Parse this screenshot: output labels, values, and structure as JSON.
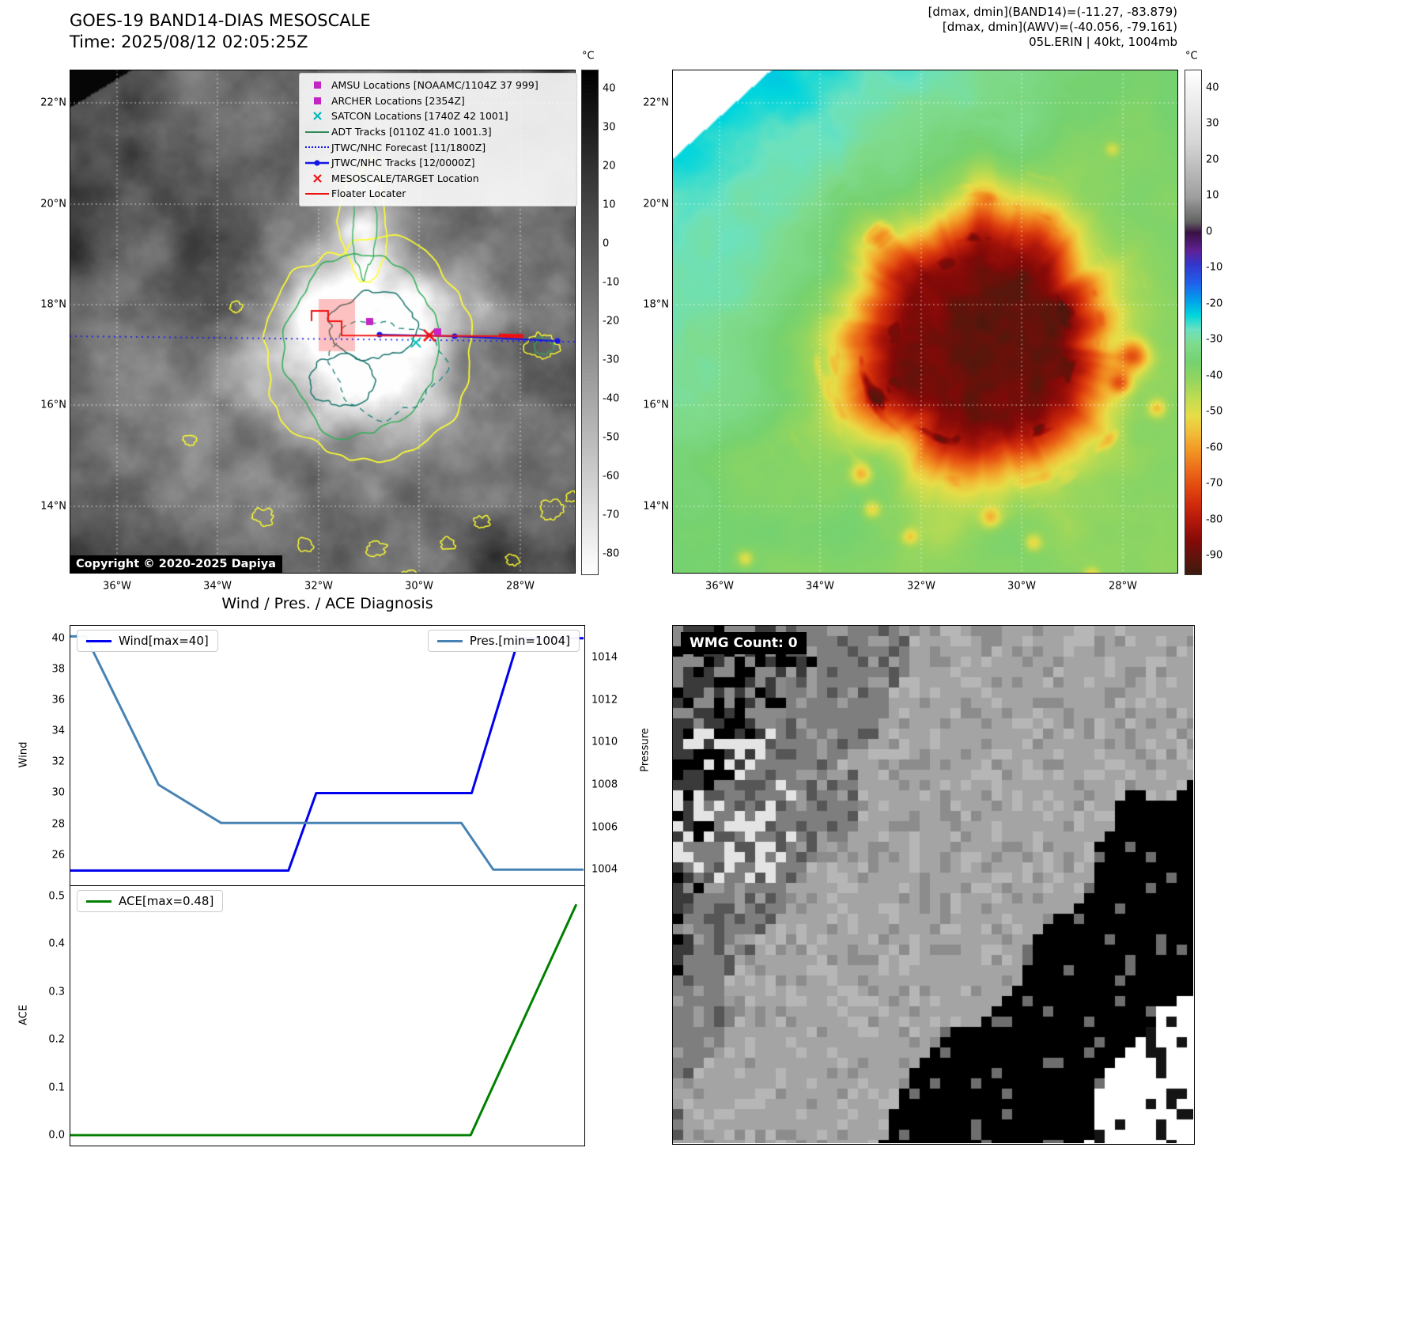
{
  "band14": {
    "title": "GOES-19 BAND14-DIAS MESOSCALE",
    "time": "Time: 2025/08/12 02:05:25Z",
    "copyright": "Copyright © 2020-2025 Dapiya",
    "colorbar_unit": "°C",
    "colorbar_ticks": [
      "40",
      "30",
      "20",
      "10",
      "0",
      "-10",
      "-20",
      "-30",
      "-40",
      "-50",
      "-60",
      "-70",
      "-80"
    ],
    "lat_ticks": [
      "22°N",
      "20°N",
      "18°N",
      "16°N",
      "14°N"
    ],
    "lon_ticks": [
      "36°W",
      "34°W",
      "32°W",
      "30°W",
      "28°W"
    ],
    "legend": [
      {
        "label": "AMSU Locations [NOAAMC/1104Z 37 999]",
        "marker": "square",
        "color": "#c424c4"
      },
      {
        "label": "ARCHER Locations [2354Z]",
        "marker": "square",
        "color": "#c424c4"
      },
      {
        "label": "SATCON Locations [1740Z 42 1001]",
        "marker": "x",
        "color": "#00b8b8"
      },
      {
        "label": "ADT Tracks [0110Z 41.0 1001.3]",
        "marker": "line",
        "color": "#2e8b57"
      },
      {
        "label": "JTWC/NHC Forecast [11/1800Z]",
        "marker": "dotted",
        "color": "#1515e8"
      },
      {
        "label": "JTWC/NHC Tracks [12/0000Z]",
        "marker": "line-dot",
        "color": "#1515e8"
      },
      {
        "label": "MESOSCALE/TARGET Location",
        "marker": "x",
        "color": "#ee1111"
      },
      {
        "label": "Floater Locater",
        "marker": "line",
        "color": "#ee1111"
      }
    ]
  },
  "awv": {
    "header1": "[dmax, dmin](BAND14)=(-11.27, -83.879)",
    "header2": "[dmax, dmin](AWV)=(-40.056, -79.161)",
    "header3": "05L.ERIN | 40kt, 1004mb",
    "colorbar_unit": "°C",
    "colorbar_ticks": [
      "40",
      "30",
      "20",
      "10",
      "0",
      "-10",
      "-20",
      "-30",
      "-40",
      "-50",
      "-60",
      "-70",
      "-80",
      "-90"
    ],
    "lat_ticks": [
      "22°N",
      "20°N",
      "18°N",
      "16°N",
      "14°N"
    ],
    "lon_ticks": [
      "36°W",
      "34°W",
      "32°W",
      "30°W",
      "28°W"
    ]
  },
  "wmg": {
    "label": "WMG Count: 0"
  },
  "palette": {
    "track_blue": "#1515e8",
    "forecast_blue": "#2020f0",
    "floater_red": "#f01010",
    "amsu_magenta": "#c424c4",
    "satcon_cyan": "#00c0c0",
    "contour_yellow": "#ffff2e",
    "contour_green": "#2fae55",
    "contour_teal": "#17736d",
    "target_box_red": "rgba(255,70,70,0.33)"
  },
  "chart_data": [
    {
      "id": "wind-pressure",
      "type": "line",
      "title": "Wind / Pres. / ACE Diagnosis",
      "x_range": [
        0,
        1
      ],
      "grid": false,
      "left_axis": {
        "label": "Wind",
        "range": [
          24.1,
          40.8
        ],
        "ticks": [
          26,
          28,
          30,
          32,
          34,
          36,
          38,
          40
        ],
        "tick_labels": [
          "26",
          "28",
          "30",
          "32",
          "34",
          "36",
          "38",
          "40"
        ]
      },
      "right_axis": {
        "label": "Pressure",
        "range": [
          1003.3,
          1015.5
        ],
        "ticks": [
          1004,
          1006,
          1008,
          1010,
          1012,
          1014
        ],
        "tick_labels": [
          "1004",
          "1006",
          "1008",
          "1010",
          "1012",
          "1014"
        ]
      },
      "series": [
        {
          "data_name": "wind-series-line",
          "name": "Wind[max=40]",
          "axis": "left",
          "color": "#0000ee",
          "width": 3,
          "points": [
            [
              0,
              25
            ],
            [
              0.425,
              25
            ],
            [
              0.479,
              30
            ],
            [
              0.782,
              30
            ],
            [
              0.874,
              40
            ],
            [
              1.0,
              40
            ]
          ]
        },
        {
          "data_name": "pressure-series-line",
          "name": "Pres.[min=1004]",
          "axis": "right",
          "color": "#4682b4",
          "width": 3,
          "points": [
            [
              0,
              1015
            ],
            [
              0.03,
              1015
            ],
            [
              0.172,
              1008
            ],
            [
              0.294,
              1006.2
            ],
            [
              0.762,
              1006.2
            ],
            [
              0.824,
              1004
            ],
            [
              1.0,
              1004
            ]
          ]
        }
      ]
    },
    {
      "id": "ace",
      "type": "line",
      "title": "",
      "x_range": [
        0,
        1
      ],
      "grid": false,
      "left_axis": {
        "label": "ACE",
        "range": [
          -0.02,
          0.52
        ],
        "ticks": [
          0,
          0.1,
          0.2,
          0.3,
          0.4,
          0.5
        ],
        "tick_labels": [
          "0.0",
          "0.1",
          "0.2",
          "0.3",
          "0.4",
          "0.5"
        ]
      },
      "series": [
        {
          "data_name": "ace-series-line",
          "name": "ACE[max=0.48]",
          "axis": "left",
          "color": "#008000",
          "width": 3,
          "points": [
            [
              0,
              0
            ],
            [
              0.78,
              0
            ],
            [
              0.985,
              0.48
            ]
          ]
        }
      ]
    }
  ]
}
